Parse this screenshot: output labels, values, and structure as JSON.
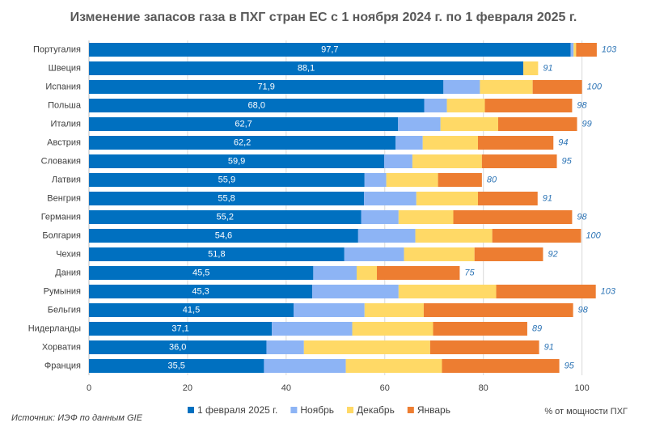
{
  "chart_data": {
    "type": "stacked-bar-horizontal",
    "title": "Изменение запасов газа в ПХГ стран ЕС с 1 ноября 2024 г. по 1 февраля 2025 г.",
    "categories": [
      "Португалия",
      "Швеция",
      "Испания",
      "Польша",
      "Италия",
      "Австрия",
      "Словакия",
      "Латвия",
      "Венгрия",
      "Германия",
      "Болгария",
      "Чехия",
      "Дания",
      "Румыния",
      "Бельгия",
      "Нидерланды",
      "Хорватия",
      "Франция"
    ],
    "series": [
      {
        "name": "1 февраля 2025 г.",
        "color": "#0070c0",
        "values": [
          97.7,
          88.1,
          71.9,
          68.0,
          62.7,
          62.2,
          59.9,
          55.9,
          55.8,
          55.2,
          54.6,
          51.8,
          45.5,
          45.3,
          41.5,
          37.1,
          36.0,
          35.5
        ],
        "value_labels": [
          "97,7",
          "88,1",
          "71,9",
          "68,0",
          "62,7",
          "62,2",
          "59,9",
          "55,9",
          "55,8",
          "55,2",
          "54,6",
          "51,8",
          "45,5",
          "45,3",
          "41,5",
          "37,1",
          "36,0",
          "35,5"
        ]
      },
      {
        "name": "Ноябрь",
        "color": "#8db4f5",
        "values": [
          0.6,
          0,
          7.4,
          4.6,
          8.6,
          5.5,
          5.7,
          4.4,
          10.6,
          7.6,
          11.6,
          12.1,
          8.8,
          17.5,
          14.4,
          16.3,
          7.6,
          16.6
        ]
      },
      {
        "name": "Декабрь",
        "color": "#ffd966",
        "values": [
          0.5,
          3.0,
          10.7,
          7.7,
          11.7,
          11.2,
          14.1,
          10.5,
          12.5,
          11.1,
          15.6,
          14.3,
          4.1,
          19.8,
          12.0,
          16.4,
          25.6,
          19.5
        ]
      },
      {
        "name": "Январь",
        "color": "#ed7d31",
        "values": [
          4.2,
          0,
          10.0,
          17.7,
          16.0,
          15.3,
          15.2,
          8.9,
          12.1,
          24.1,
          18.0,
          13.9,
          16.8,
          20.2,
          30.3,
          19.1,
          22.1,
          23.8
        ]
      }
    ],
    "totals": [
      103,
      91,
      100,
      98,
      99,
      94,
      95,
      80,
      91,
      98,
      100,
      92,
      75,
      103,
      98,
      89,
      91,
      95
    ],
    "xlim": [
      0,
      104
    ],
    "xticks": [
      0,
      20,
      40,
      60,
      80,
      100
    ],
    "grid": true,
    "legend": "bottom",
    "xlabel": "% от мощности ПХГ",
    "source": "Источник: ИЭФ по данным GIE"
  }
}
